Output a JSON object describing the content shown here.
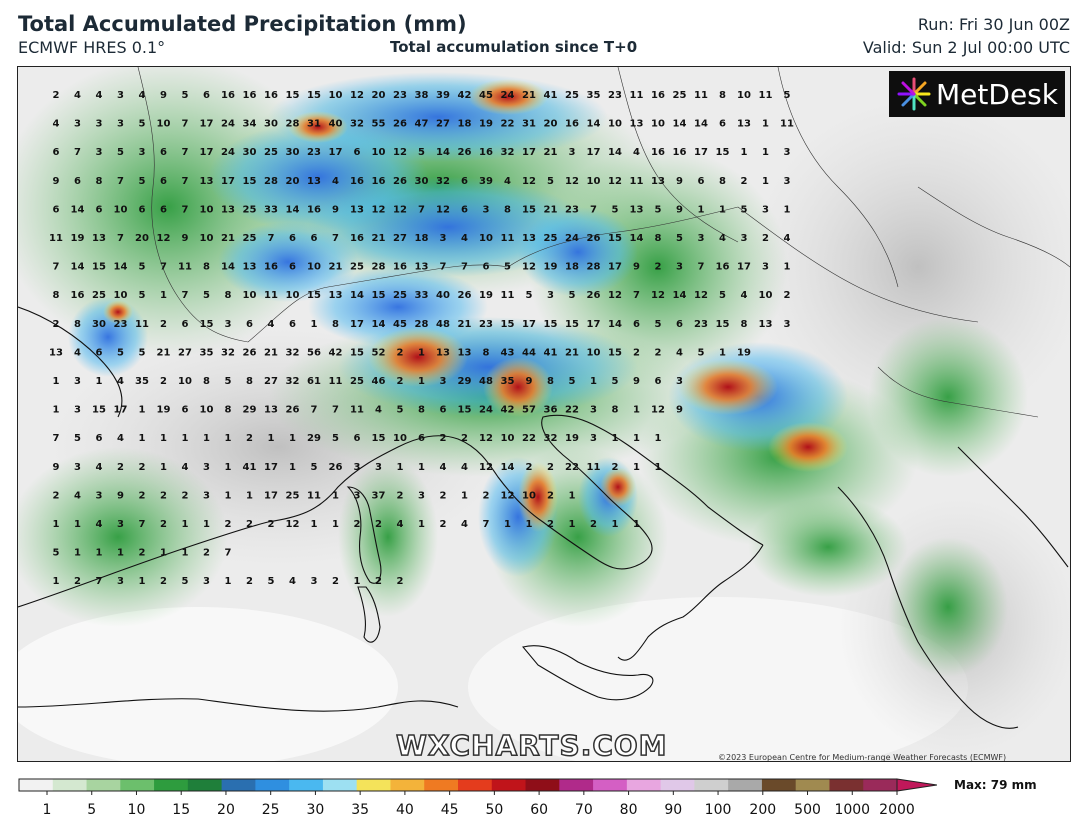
{
  "header": {
    "title": "Total Accumulated Precipitation (mm)",
    "subtitle": "ECMWF HRES 0.1°",
    "center_subtitle": "Total accumulation since T+0",
    "run": "Run: Fri 30 Jun 00Z",
    "valid": "Valid: Sun 2 Jul 00:00 UTC"
  },
  "logo": {
    "text": "MetDesk",
    "icon": "starburst-logo-icon"
  },
  "watermark": "WXCHARTS.COM",
  "copyright": "©2023 European Centre for Medium-range Weather Forecasts (ECMWF)",
  "colorbar": {
    "ticks": [
      "1",
      "5",
      "10",
      "15",
      "20",
      "25",
      "30",
      "35",
      "40",
      "45",
      "50",
      "60",
      "70",
      "80",
      "90",
      "100",
      "200",
      "500",
      "1000",
      "2000"
    ],
    "max_label": "Max: 79 mm",
    "colors": [
      "#f2f2f2",
      "#d4e8d0",
      "#a8d4a0",
      "#6cbf6c",
      "#2e9c3e",
      "#1f7f3a",
      "#2a6fb0",
      "#2f8fe0",
      "#4ab8f0",
      "#9de0f2",
      "#f4e35a",
      "#f3b33a",
      "#ef7a22",
      "#e43c1d",
      "#c0141a",
      "#8f0e18",
      "#b02a8a",
      "#d45fc4",
      "#e8a6e0",
      "#e0c8e8",
      "#cfcfcf",
      "#a9a9a9",
      "#6a4a2a",
      "#a08a50",
      "#7a3030",
      "#9a2a5a"
    ]
  },
  "grid_values": [
    [
      "2",
      "4",
      "4",
      "3",
      "4",
      "9",
      "5",
      "6",
      "16",
      "16",
      "16",
      "15",
      "15",
      "10",
      "12",
      "20",
      "23",
      "38",
      "39",
      "42",
      "45",
      "24",
      "21",
      "41",
      "25",
      "35",
      "23",
      "11",
      "16",
      "25",
      "11",
      "8",
      "10",
      "11",
      "5"
    ],
    [
      "4",
      "3",
      "3",
      "3",
      "5",
      "10",
      "7",
      "17",
      "24",
      "34",
      "30",
      "28",
      "31",
      "40",
      "32",
      "55",
      "26",
      "47",
      "27",
      "18",
      "19",
      "22",
      "31",
      "20",
      "16",
      "14",
      "10",
      "13",
      "10",
      "14",
      "14",
      "6",
      "13",
      "1",
      "11"
    ],
    [
      "6",
      "7",
      "3",
      "5",
      "3",
      "6",
      "7",
      "17",
      "24",
      "30",
      "25",
      "30",
      "23",
      "17",
      "6",
      "10",
      "12",
      "5",
      "14",
      "26",
      "16",
      "32",
      "17",
      "21",
      "3",
      "17",
      "14",
      "4",
      "16",
      "16",
      "17",
      "15",
      "1",
      "1",
      "3"
    ],
    [
      "9",
      "6",
      "8",
      "7",
      "5",
      "6",
      "7",
      "13",
      "17",
      "15",
      "28",
      "20",
      "13",
      "4",
      "16",
      "16",
      "26",
      "30",
      "32",
      "6",
      "39",
      "4",
      "12",
      "5",
      "12",
      "10",
      "12",
      "11",
      "13",
      "9",
      "6",
      "8",
      "2",
      "1",
      "3"
    ],
    [
      "6",
      "14",
      "6",
      "10",
      "6",
      "6",
      "7",
      "10",
      "13",
      "25",
      "33",
      "14",
      "16",
      "9",
      "13",
      "12",
      "12",
      "7",
      "12",
      "6",
      "3",
      "8",
      "15",
      "21",
      "23",
      "7",
      "5",
      "13",
      "5",
      "9",
      "1",
      "1",
      "5",
      "3",
      "1"
    ],
    [
      "11",
      "19",
      "13",
      "7",
      "20",
      "12",
      "9",
      "10",
      "21",
      "25",
      "7",
      "6",
      "6",
      "7",
      "16",
      "21",
      "27",
      "18",
      "3",
      "4",
      "10",
      "11",
      "13",
      "25",
      "24",
      "26",
      "15",
      "14",
      "8",
      "5",
      "3",
      "4",
      "3",
      "2",
      "4"
    ],
    [
      "7",
      "14",
      "15",
      "14",
      "5",
      "7",
      "11",
      "8",
      "14",
      "13",
      "16",
      "6",
      "10",
      "21",
      "25",
      "28",
      "16",
      "13",
      "7",
      "7",
      "6",
      "5",
      "12",
      "19",
      "18",
      "28",
      "17",
      "9",
      "2",
      "3",
      "7",
      "16",
      "17",
      "3",
      "1"
    ],
    [
      "8",
      "16",
      "25",
      "10",
      "5",
      "1",
      "7",
      "5",
      "8",
      "10",
      "11",
      "10",
      "15",
      "13",
      "14",
      "15",
      "25",
      "33",
      "40",
      "26",
      "19",
      "11",
      "5",
      "3",
      "5",
      "26",
      "12",
      "7",
      "12",
      "14",
      "12",
      "5",
      "4",
      "10",
      "2"
    ],
    [
      "2",
      "8",
      "30",
      "23",
      "11",
      "2",
      "6",
      "15",
      "3",
      "6",
      "4",
      "6",
      "1",
      "8",
      "17",
      "14",
      "45",
      "28",
      "48",
      "21",
      "23",
      "15",
      "17",
      "15",
      "15",
      "17",
      "14",
      "6",
      "5",
      "6",
      "23",
      "15",
      "8",
      "13",
      "3"
    ],
    [
      "13",
      "4",
      "6",
      "5",
      "5",
      "21",
      "27",
      "35",
      "32",
      "26",
      "21",
      "32",
      "56",
      "42",
      "15",
      "52",
      "2",
      "1",
      "13",
      "13",
      "8",
      "43",
      "44",
      "41",
      "21",
      "10",
      "15",
      "2",
      "2",
      "4",
      "5",
      "1",
      "19"
    ],
    [
      "1",
      "3",
      "1",
      "4",
      "35",
      "2",
      "10",
      "8",
      "5",
      "8",
      "27",
      "32",
      "61",
      "11",
      "25",
      "46",
      "2",
      "1",
      "3",
      "29",
      "48",
      "35",
      "9",
      "8",
      "5",
      "1",
      "5",
      "9",
      "6",
      "3"
    ],
    [
      "1",
      "3",
      "15",
      "17",
      "1",
      "19",
      "6",
      "10",
      "8",
      "29",
      "13",
      "26",
      "7",
      "7",
      "11",
      "4",
      "5",
      "8",
      "6",
      "15",
      "24",
      "42",
      "57",
      "36",
      "22",
      "3",
      "8",
      "1",
      "12",
      "9"
    ],
    [
      "7",
      "5",
      "6",
      "4",
      "1",
      "1",
      "1",
      "1",
      "1",
      "2",
      "1",
      "1",
      "29",
      "5",
      "6",
      "15",
      "10",
      "6",
      "2",
      "2",
      "12",
      "10",
      "22",
      "32",
      "19",
      "3",
      "1",
      "1",
      "1"
    ],
    [
      "9",
      "3",
      "4",
      "2",
      "2",
      "1",
      "4",
      "3",
      "1",
      "41",
      "17",
      "1",
      "5",
      "26",
      "3",
      "3",
      "1",
      "1",
      "4",
      "4",
      "12",
      "14",
      "2",
      "2",
      "22",
      "11",
      "2",
      "1",
      "1"
    ],
    [
      "2",
      "4",
      "3",
      "9",
      "2",
      "2",
      "2",
      "3",
      "1",
      "1",
      "17",
      "25",
      "11",
      "1",
      "3",
      "37",
      "2",
      "3",
      "2",
      "1",
      "2",
      "12",
      "10",
      "2",
      "1"
    ],
    [
      "1",
      "1",
      "4",
      "3",
      "7",
      "2",
      "1",
      "1",
      "2",
      "2",
      "2",
      "12",
      "1",
      "1",
      "2",
      "2",
      "4",
      "1",
      "2",
      "4",
      "7",
      "1",
      "1",
      "2",
      "1",
      "2",
      "1",
      "1"
    ],
    [
      "5",
      "1",
      "1",
      "1",
      "2",
      "1",
      "1",
      "2",
      "7"
    ],
    [
      "1",
      "2",
      "7",
      "3",
      "1",
      "2",
      "5",
      "3",
      "1",
      "2",
      "5",
      "4",
      "3",
      "2",
      "1",
      "2",
      "2"
    ]
  ]
}
